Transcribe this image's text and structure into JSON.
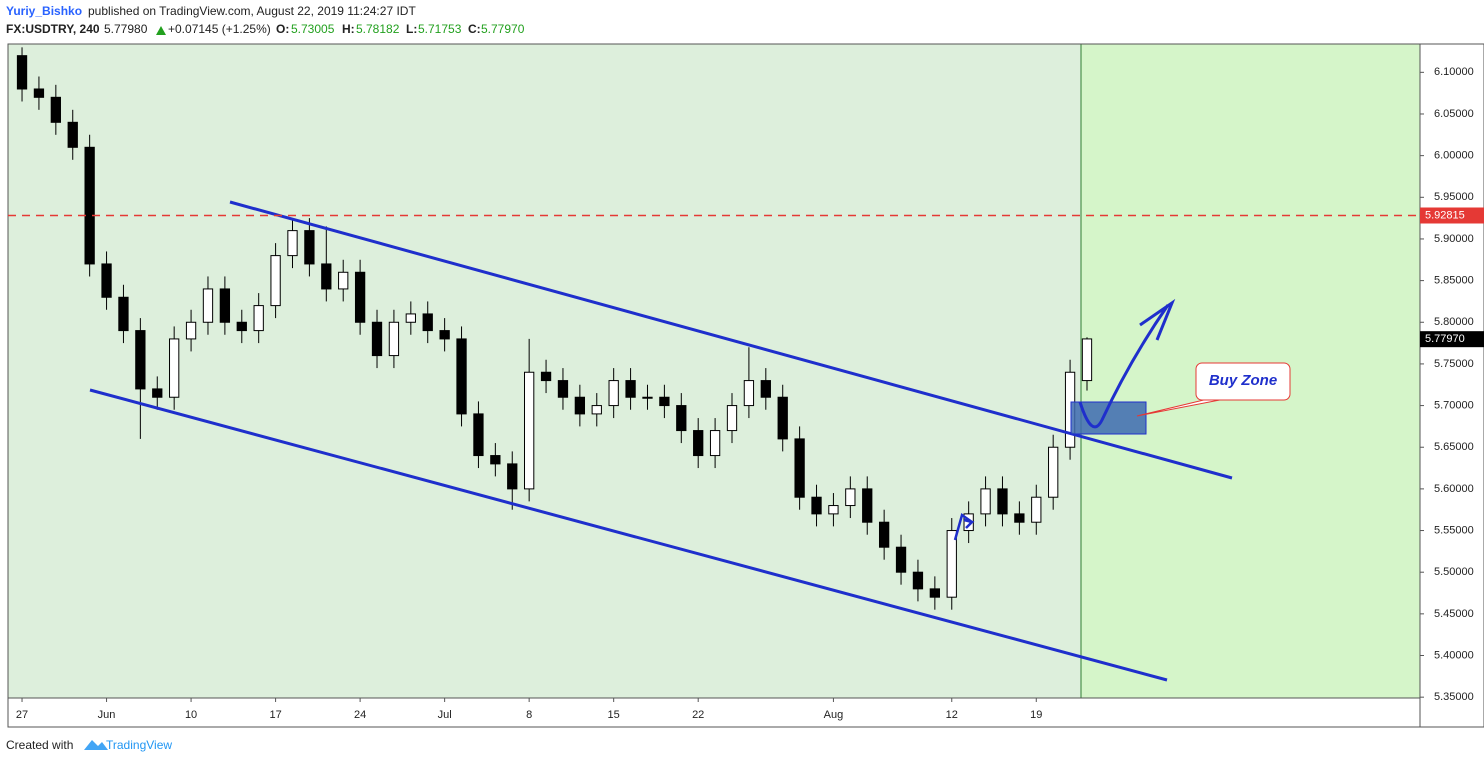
{
  "header": {
    "author": "Yuriy_Bishko",
    "published": "published on TradingView.com, August 22, 2019 11:24:27 IDT",
    "symbol": "FX:USDTRY, 240",
    "last": "5.77980",
    "change": "+0.07145 (+1.25%)",
    "open_label": "O:",
    "open": "5.73005",
    "high_label": "H:",
    "high": "5.78182",
    "low_label": "L:",
    "low": "5.71753",
    "close_label": "C:",
    "close": "5.77970"
  },
  "footer": {
    "created_with": "Created with",
    "brand": "TradingView"
  },
  "chart_data": {
    "type": "candlestick",
    "x": [
      0,
      1,
      2,
      3,
      4,
      5,
      6,
      7,
      8,
      9,
      10,
      11,
      12,
      13,
      14,
      15,
      16,
      17,
      18,
      19,
      20,
      21,
      22,
      23,
      24,
      25,
      26,
      27,
      28,
      29,
      30,
      31,
      32,
      33,
      34,
      35,
      36,
      37,
      38,
      39,
      40,
      41,
      42,
      43,
      44,
      45,
      46,
      47,
      48,
      49,
      50,
      51,
      52,
      53,
      54,
      55,
      56,
      57,
      58,
      59,
      60,
      61,
      62,
      63
    ],
    "open": [
      6.12,
      6.08,
      6.07,
      6.04,
      6.01,
      5.87,
      5.83,
      5.79,
      5.72,
      5.71,
      5.78,
      5.8,
      5.84,
      5.8,
      5.79,
      5.82,
      5.88,
      5.91,
      5.87,
      5.84,
      5.86,
      5.8,
      5.76,
      5.8,
      5.81,
      5.79,
      5.78,
      5.69,
      5.64,
      5.63,
      5.6,
      5.74,
      5.73,
      5.71,
      5.69,
      5.7,
      5.73,
      5.71,
      5.71,
      5.7,
      5.67,
      5.64,
      5.67,
      5.7,
      5.73,
      5.71,
      5.66,
      5.59,
      5.57,
      5.58,
      5.6,
      5.56,
      5.53,
      5.5,
      5.48,
      5.47,
      5.55,
      5.57,
      5.6,
      5.57,
      5.56,
      5.59,
      5.65,
      5.73
    ],
    "high": [
      6.13,
      6.095,
      6.085,
      6.055,
      6.025,
      5.885,
      5.845,
      5.805,
      5.735,
      5.795,
      5.815,
      5.855,
      5.855,
      5.815,
      5.835,
      5.895,
      5.925,
      5.925,
      5.915,
      5.875,
      5.875,
      5.815,
      5.815,
      5.825,
      5.825,
      5.805,
      5.795,
      5.705,
      5.655,
      5.645,
      5.78,
      5.755,
      5.745,
      5.725,
      5.715,
      5.745,
      5.745,
      5.725,
      5.725,
      5.715,
      5.685,
      5.685,
      5.715,
      5.77,
      5.745,
      5.725,
      5.675,
      5.605,
      5.595,
      5.615,
      5.615,
      5.575,
      5.545,
      5.515,
      5.495,
      5.565,
      5.585,
      5.615,
      5.615,
      5.585,
      5.605,
      5.665,
      5.755,
      5.782
    ],
    "low": [
      6.065,
      6.055,
      6.025,
      5.995,
      5.855,
      5.815,
      5.775,
      5.66,
      5.695,
      5.695,
      5.765,
      5.785,
      5.785,
      5.775,
      5.775,
      5.805,
      5.865,
      5.855,
      5.825,
      5.825,
      5.785,
      5.745,
      5.745,
      5.785,
      5.775,
      5.765,
      5.675,
      5.625,
      5.615,
      5.575,
      5.585,
      5.715,
      5.695,
      5.675,
      5.675,
      5.685,
      5.695,
      5.695,
      5.685,
      5.655,
      5.625,
      5.625,
      5.655,
      5.685,
      5.695,
      5.645,
      5.575,
      5.555,
      5.555,
      5.565,
      5.545,
      5.515,
      5.485,
      5.465,
      5.455,
      5.455,
      5.535,
      5.555,
      5.555,
      5.545,
      5.545,
      5.575,
      5.635,
      5.718
    ],
    "close": [
      6.08,
      6.07,
      6.04,
      6.01,
      5.87,
      5.83,
      5.79,
      5.72,
      5.71,
      5.78,
      5.8,
      5.84,
      5.8,
      5.79,
      5.82,
      5.88,
      5.91,
      5.87,
      5.84,
      5.86,
      5.8,
      5.76,
      5.8,
      5.81,
      5.79,
      5.78,
      5.69,
      5.64,
      5.63,
      5.6,
      5.74,
      5.73,
      5.71,
      5.69,
      5.7,
      5.73,
      5.71,
      5.71,
      5.7,
      5.67,
      5.64,
      5.67,
      5.7,
      5.73,
      5.71,
      5.66,
      5.59,
      5.57,
      5.58,
      5.6,
      5.56,
      5.53,
      5.5,
      5.48,
      5.47,
      5.55,
      5.57,
      5.6,
      5.57,
      5.56,
      5.59,
      5.65,
      5.74,
      5.78
    ],
    "xlim": [
      -0.83,
      82.7
    ],
    "xticks": [
      {
        "value": 0,
        "label": "27"
      },
      {
        "value": 5,
        "label": "Jun"
      },
      {
        "value": 10,
        "label": "10"
      },
      {
        "value": 15,
        "label": "17"
      },
      {
        "value": 20,
        "label": "24"
      },
      {
        "value": 25,
        "label": "Jul"
      },
      {
        "value": 30,
        "label": "8"
      },
      {
        "value": 35,
        "label": "15"
      },
      {
        "value": 40,
        "label": "22"
      },
      {
        "value": 48,
        "label": "Aug"
      },
      {
        "value": 55,
        "label": "12"
      },
      {
        "value": 60,
        "label": "19"
      }
    ],
    "ylim": [
      5.349,
      6.134
    ],
    "yticks": [
      {
        "value": 5.35,
        "label": "5.35000"
      },
      {
        "value": 5.4,
        "label": "5.40000"
      },
      {
        "value": 5.45,
        "label": "5.45000"
      },
      {
        "value": 5.5,
        "label": "5.50000"
      },
      {
        "value": 5.55,
        "label": "5.55000"
      },
      {
        "value": 5.6,
        "label": "5.60000"
      },
      {
        "value": 5.65,
        "label": "5.65000"
      },
      {
        "value": 5.7,
        "label": "5.70000"
      },
      {
        "value": 5.75,
        "label": "5.75000"
      },
      {
        "value": 5.8,
        "label": "5.80000"
      },
      {
        "value": 5.85,
        "label": "5.85000"
      },
      {
        "value": 5.9,
        "label": "5.90000"
      },
      {
        "value": 5.95,
        "label": "5.95000"
      },
      {
        "value": 6.0,
        "label": "6.00000"
      },
      {
        "value": 6.05,
        "label": "6.05000"
      },
      {
        "value": 6.1,
        "label": "6.10000"
      }
    ],
    "hline": {
      "value": 5.92815,
      "color": "#e53935"
    },
    "price_label": {
      "value": 5.7797,
      "label": "5.77970"
    },
    "annotation": "Buy Zone"
  }
}
